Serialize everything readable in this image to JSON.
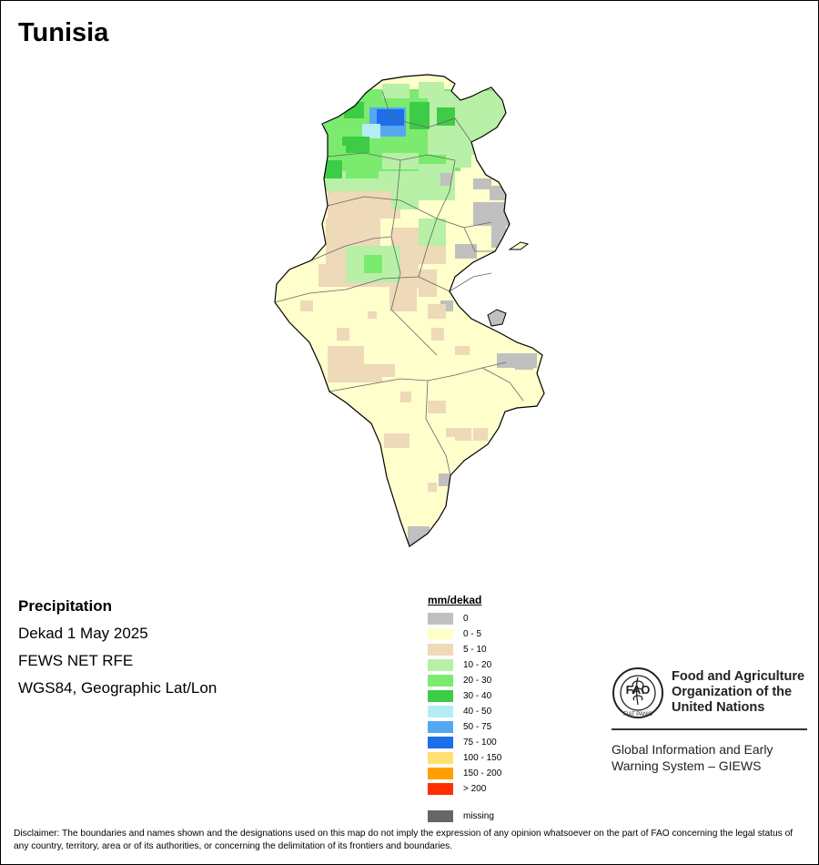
{
  "title": "Tunisia",
  "info": {
    "variable": "Precipitation",
    "period": "Dekad 1 May 2025",
    "source": "FEWS NET RFE",
    "projection": "WGS84, Geographic Lat/Lon"
  },
  "legend": {
    "title": "mm/dekad",
    "classes": [
      {
        "label": "0",
        "color": "#c0c0c0"
      },
      {
        "label": "0 - 5",
        "color": "#ffffcc"
      },
      {
        "label": "5 - 10",
        "color": "#eed9b8"
      },
      {
        "label": "10 - 20",
        "color": "#b7f0a6"
      },
      {
        "label": "20 - 30",
        "color": "#7aeb6e"
      },
      {
        "label": "30 - 40",
        "color": "#3dcc45"
      },
      {
        "label": "40 - 50",
        "color": "#b4eef4"
      },
      {
        "label": "50 - 75",
        "color": "#55a8f0"
      },
      {
        "label": "75 - 100",
        "color": "#1c6fe8"
      },
      {
        "label": "100 - 150",
        "color": "#ffe070"
      },
      {
        "label": "150 - 200",
        "color": "#ffa000"
      },
      {
        "label": "> 200",
        "color": "#ff3000"
      }
    ],
    "missing": {
      "label": "missing",
      "color": "#666666"
    }
  },
  "logo": {
    "org_line1": "Food and Agriculture",
    "org_line2": "Organization of the",
    "org_line3": "United Nations",
    "letters": "FAO",
    "motto": "FIAT PANIS",
    "system_line1": "Global Information and Early",
    "system_line2": "Warning System – GIEWS"
  },
  "disclaimer": "Disclaimer: The boundaries and names shown and the designations used on this map do not imply the expression of any opinion whatsoever on the part of FAO concerning the legal status of any country, territory, area or of its authorities, or concerning the delimitation of its frontiers and boundaries."
}
